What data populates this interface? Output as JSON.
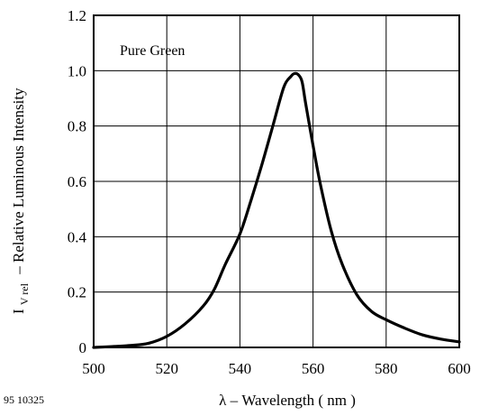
{
  "chart_data": {
    "type": "line",
    "title": "",
    "xlabel": "λ – Wavelength ( nm )",
    "ylabel_main": "I",
    "ylabel_sub": "V rel",
    "ylabel_rest": "– Relative Luminous Intensity",
    "xlim": [
      500,
      600
    ],
    "ylim": [
      0,
      1.2
    ],
    "x_ticks": [
      500,
      520,
      540,
      560,
      580,
      600
    ],
    "x_tick_labels": [
      "500",
      "520",
      "540",
      "560",
      "580",
      "600"
    ],
    "y_ticks": [
      0,
      0.2,
      0.4,
      0.6,
      0.8,
      1.0,
      1.2
    ],
    "y_tick_labels": [
      "0",
      "0.2",
      "0.4",
      "0.6",
      "0.8",
      "1.0",
      "1.2"
    ],
    "grid": true,
    "legend_position": "top-left",
    "series": [
      {
        "name": "Pure Green",
        "x": [
          500,
          505,
          510,
          515,
          520,
          525,
          530,
          533,
          536,
          540,
          543,
          546,
          549,
          552,
          554,
          555,
          556,
          557,
          558,
          560,
          562,
          565,
          568,
          572,
          576,
          580,
          585,
          590,
          595,
          600
        ],
        "y": [
          0.0,
          0.003,
          0.007,
          0.015,
          0.04,
          0.085,
          0.15,
          0.21,
          0.3,
          0.41,
          0.53,
          0.66,
          0.8,
          0.94,
          0.98,
          0.99,
          0.985,
          0.96,
          0.88,
          0.73,
          0.59,
          0.42,
          0.3,
          0.19,
          0.13,
          0.1,
          0.07,
          0.045,
          0.03,
          0.02
        ]
      }
    ]
  },
  "footer": {
    "code": "95 10325"
  }
}
